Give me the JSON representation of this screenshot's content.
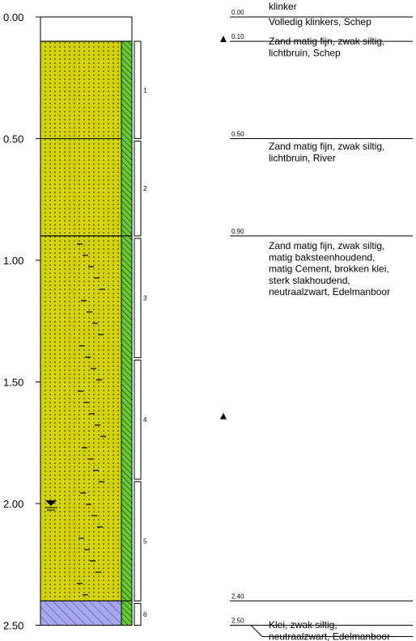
{
  "depth_scale": {
    "ticks": [
      "0.00",
      "0.50",
      "1.00",
      "1.50",
      "2.00",
      "2.50"
    ]
  },
  "layers": [
    {
      "top": 0.0,
      "bottom": 0.1,
      "type": "klinker"
    },
    {
      "top": 0.1,
      "bottom": 0.9,
      "type": "zand"
    },
    {
      "top": 0.9,
      "bottom": 2.4,
      "type": "zand-baksteen"
    },
    {
      "top": 2.4,
      "bottom": 2.5,
      "type": "klei"
    }
  ],
  "samples": [
    {
      "label": "1",
      "top": 0.1,
      "bottom": 0.5
    },
    {
      "label": "2",
      "top": 0.51,
      "bottom": 0.9
    },
    {
      "label": "3",
      "top": 0.91,
      "bottom": 1.4
    },
    {
      "label": "4",
      "top": 1.41,
      "bottom": 1.9
    },
    {
      "label": "5",
      "top": 1.91,
      "bottom": 2.4
    },
    {
      "label": "6",
      "top": 2.41,
      "bottom": 2.5
    }
  ],
  "groundwater_depth": 2.0,
  "boundaries": [
    {
      "depth": 0.0,
      "label": "0.00"
    },
    {
      "depth": 0.1,
      "label": "0.10"
    },
    {
      "depth": 0.5,
      "label": "0.50"
    },
    {
      "depth": 0.9,
      "label": "0.90"
    },
    {
      "depth": 2.4,
      "label": "2.40"
    },
    {
      "depth": 2.5,
      "label": "2.50"
    }
  ],
  "markers": [
    0.1,
    1.65
  ],
  "descriptions": [
    {
      "depth": 0.0,
      "lines": [
        "klinker"
      ]
    },
    {
      "depth": 0.1,
      "lines": [
        "Volledig  klinkers, Schep"
      ]
    },
    {
      "depth": 0.1,
      "lines": [
        "Zand matig fijn, zwak siltig,",
        "lichtbruin,  Schep"
      ]
    },
    {
      "depth": 0.5,
      "lines": [
        "Zand matig fijn, zwak siltig,",
        "lichtbruin,  River"
      ]
    },
    {
      "depth": 0.9,
      "lines": [
        "Zand matig fijn, zwak siltig,",
        "matig  baksteenhoudend,",
        "matig Cement, brokken klei,",
        "sterk  slakhoudend,",
        "neutraalzwart,  Edelmanboor"
      ]
    },
    {
      "depth": 2.4,
      "lines": [
        "Klei, zwak siltig,",
        "neutraalzwart,  Edelmanboor"
      ]
    }
  ],
  "colors": {
    "sand": "#d4d400",
    "clay": "#a8a8ee",
    "green_strip": "#66cc33"
  }
}
